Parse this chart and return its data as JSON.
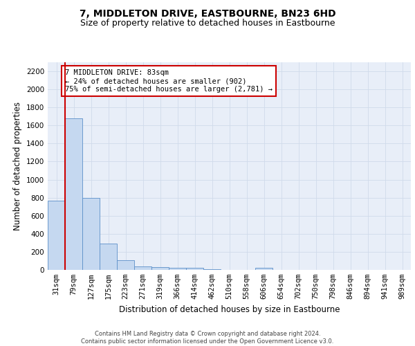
{
  "title": "7, MIDDLETON DRIVE, EASTBOURNE, BN23 6HD",
  "subtitle": "Size of property relative to detached houses in Eastbourne",
  "xlabel": "Distribution of detached houses by size in Eastbourne",
  "ylabel": "Number of detached properties",
  "categories": [
    "31sqm",
    "79sqm",
    "127sqm",
    "175sqm",
    "223sqm",
    "271sqm",
    "319sqm",
    "366sqm",
    "414sqm",
    "462sqm",
    "510sqm",
    "558sqm",
    "606sqm",
    "654sqm",
    "702sqm",
    "750sqm",
    "798sqm",
    "846sqm",
    "894sqm",
    "941sqm",
    "989sqm"
  ],
  "values": [
    770,
    1680,
    800,
    295,
    110,
    40,
    30,
    25,
    20,
    10,
    0,
    0,
    25,
    0,
    0,
    0,
    0,
    0,
    0,
    0,
    0
  ],
  "bar_color": "#c5d8f0",
  "bar_edge_color": "#5b8fc9",
  "grid_color": "#d0daea",
  "background_color": "#e8eef8",
  "vline_color": "#cc0000",
  "vline_x_index": 1,
  "annotation_text": "7 MIDDLETON DRIVE: 83sqm\n← 24% of detached houses are smaller (902)\n75% of semi-detached houses are larger (2,781) →",
  "annotation_box_color": "#ffffff",
  "annotation_box_edge": "#cc0000",
  "ylim": [
    0,
    2300
  ],
  "yticks": [
    0,
    200,
    400,
    600,
    800,
    1000,
    1200,
    1400,
    1600,
    1800,
    2000,
    2200
  ],
  "footer": "Contains HM Land Registry data © Crown copyright and database right 2024.\nContains public sector information licensed under the Open Government Licence v3.0.",
  "title_fontsize": 10,
  "subtitle_fontsize": 9,
  "ylabel_fontsize": 8.5,
  "xlabel_fontsize": 8.5,
  "tick_fontsize": 7.5,
  "annotation_fontsize": 7.5,
  "footer_fontsize": 6
}
